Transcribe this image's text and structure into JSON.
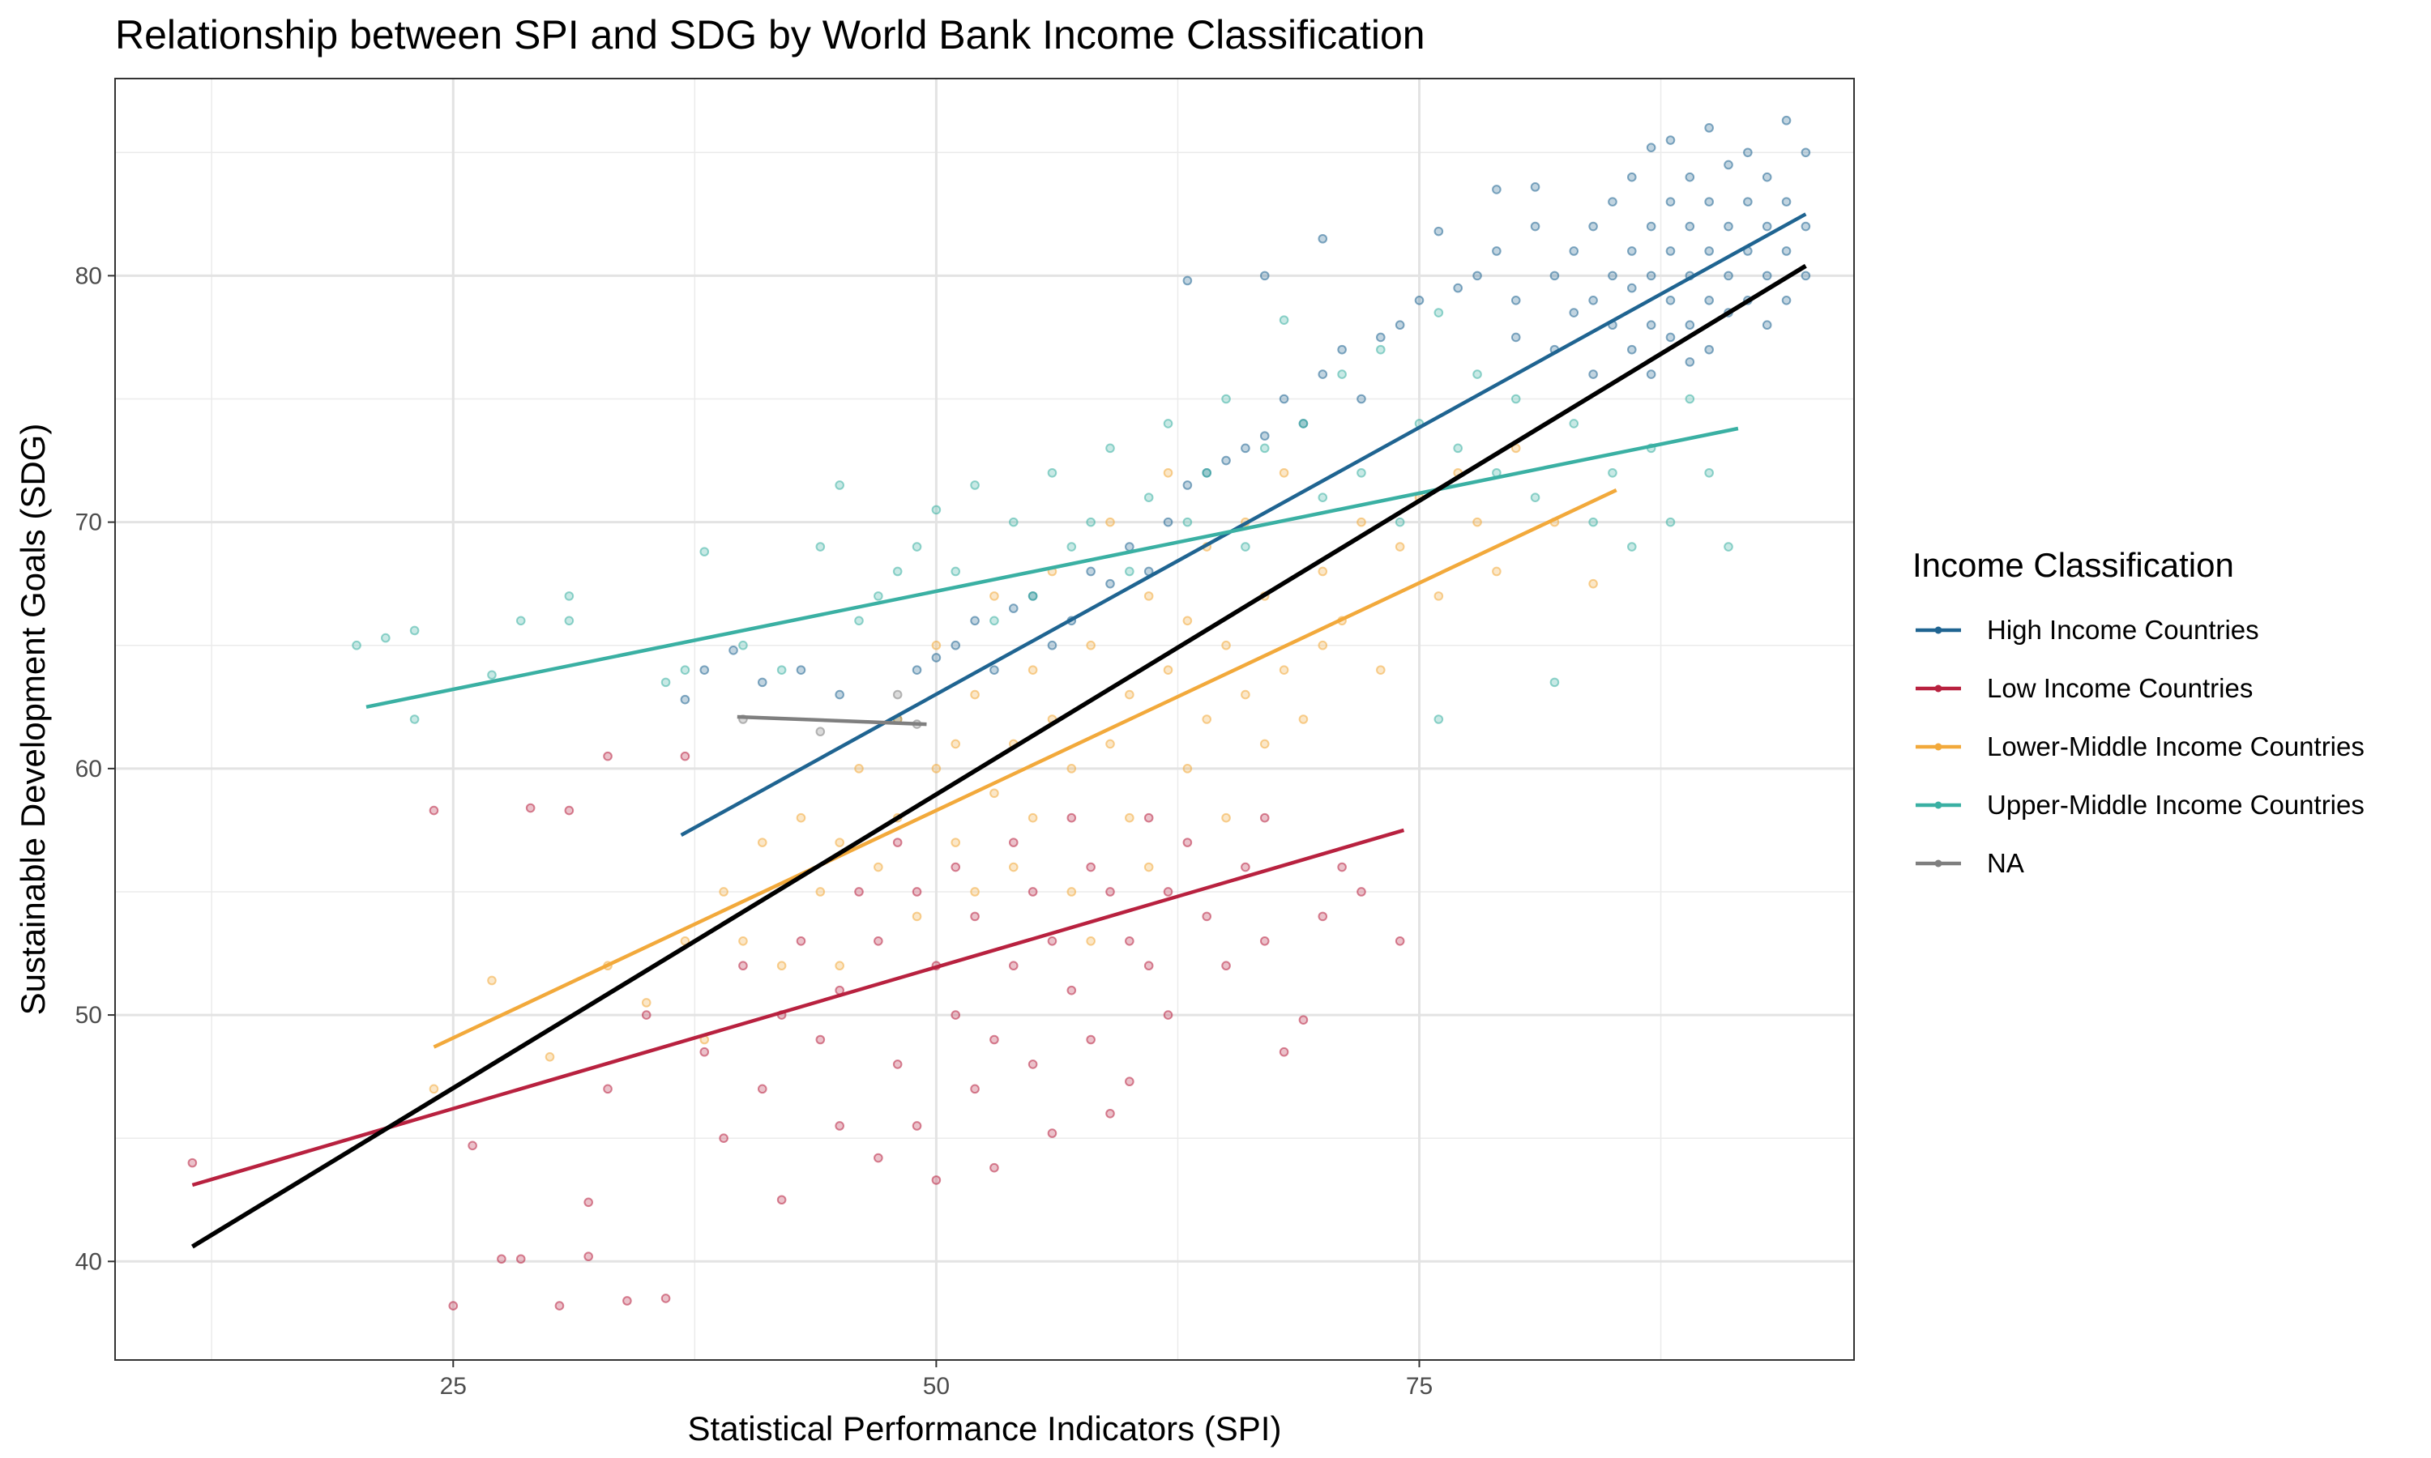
{
  "chart_data": {
    "type": "scatter",
    "title": "Relationship between SPI and SDG by World Bank Income Classification",
    "xlabel": "Statistical Performance Indicators (SPI)",
    "ylabel": "Sustainable Development Goals (SDG)",
    "xlim": [
      7.5,
      97.5
    ],
    "ylim": [
      36,
      88
    ],
    "xticks": [
      25,
      50,
      75
    ],
    "yticks": [
      40,
      50,
      60,
      70,
      80
    ],
    "grid": true,
    "legend": {
      "title": "Income Classification",
      "position": "right"
    },
    "series": [
      {
        "name": "High Income Countries",
        "color": "#1f6491",
        "points": [
          [
            37,
            62.8
          ],
          [
            38,
            64
          ],
          [
            39.5,
            64.8
          ],
          [
            41,
            63.5
          ],
          [
            43,
            64
          ],
          [
            45,
            63
          ],
          [
            48,
            62
          ],
          [
            49,
            64
          ],
          [
            50,
            64.5
          ],
          [
            51,
            65
          ],
          [
            52,
            66
          ],
          [
            53,
            64
          ],
          [
            54,
            66.5
          ],
          [
            55,
            67
          ],
          [
            56,
            65
          ],
          [
            57,
            66
          ],
          [
            58,
            68
          ],
          [
            59,
            67.5
          ],
          [
            60,
            69
          ],
          [
            61,
            68
          ],
          [
            62,
            70
          ],
          [
            63,
            71.5
          ],
          [
            63,
            79.8
          ],
          [
            64,
            72
          ],
          [
            65,
            72.5
          ],
          [
            66,
            73
          ],
          [
            67,
            73.5
          ],
          [
            67,
            80
          ],
          [
            68,
            75
          ],
          [
            69,
            74
          ],
          [
            70,
            76
          ],
          [
            70,
            81.5
          ],
          [
            71,
            77
          ],
          [
            72,
            75
          ],
          [
            73,
            77.5
          ],
          [
            74,
            78
          ],
          [
            75,
            79
          ],
          [
            76,
            81.8
          ],
          [
            77,
            79.5
          ],
          [
            78,
            80
          ],
          [
            79,
            81
          ],
          [
            79,
            83.5
          ],
          [
            80,
            79
          ],
          [
            80,
            77.5
          ],
          [
            81,
            82
          ],
          [
            81,
            83.6
          ],
          [
            82,
            80
          ],
          [
            82,
            77
          ],
          [
            83,
            81
          ],
          [
            83,
            78.5
          ],
          [
            84,
            82
          ],
          [
            84,
            79
          ],
          [
            84,
            76
          ],
          [
            85,
            80
          ],
          [
            85,
            83
          ],
          [
            85,
            78
          ],
          [
            86,
            81
          ],
          [
            86,
            84
          ],
          [
            86,
            77
          ],
          [
            86,
            79.5
          ],
          [
            87,
            82
          ],
          [
            87,
            80
          ],
          [
            87,
            85.2
          ],
          [
            87,
            78
          ],
          [
            87,
            76
          ],
          [
            88,
            81
          ],
          [
            88,
            83
          ],
          [
            88,
            79
          ],
          [
            88,
            85.5
          ],
          [
            88,
            77.5
          ],
          [
            89,
            80
          ],
          [
            89,
            82
          ],
          [
            89,
            84
          ],
          [
            89,
            78
          ],
          [
            89,
            76.5
          ],
          [
            90,
            81
          ],
          [
            90,
            79
          ],
          [
            90,
            83
          ],
          [
            90,
            86
          ],
          [
            90,
            77
          ],
          [
            91,
            80
          ],
          [
            91,
            82
          ],
          [
            91,
            84.5
          ],
          [
            91,
            78.5
          ],
          [
            92,
            81
          ],
          [
            92,
            79
          ],
          [
            92,
            83
          ],
          [
            92,
            85
          ],
          [
            93,
            80
          ],
          [
            93,
            82
          ],
          [
            93,
            78
          ],
          [
            93,
            84
          ],
          [
            94,
            81
          ],
          [
            94,
            86.3
          ],
          [
            94,
            79
          ],
          [
            94,
            83
          ],
          [
            95,
            80
          ],
          [
            95,
            82
          ],
          [
            95,
            85
          ]
        ]
      },
      {
        "name": "Low Income Countries",
        "color": "#b8213f",
        "points": [
          [
            11.5,
            44
          ],
          [
            24,
            58.3
          ],
          [
            25,
            38.2
          ],
          [
            26,
            44.7
          ],
          [
            27.5,
            40.1
          ],
          [
            28.5,
            40.1
          ],
          [
            29,
            58.4
          ],
          [
            30.5,
            38.2
          ],
          [
            31,
            58.3
          ],
          [
            32,
            42.4
          ],
          [
            32,
            40.2
          ],
          [
            33,
            47
          ],
          [
            33,
            60.5
          ],
          [
            34,
            38.4
          ],
          [
            35,
            50
          ],
          [
            36,
            38.5
          ],
          [
            37,
            60.5
          ],
          [
            38,
            48.5
          ],
          [
            39,
            45
          ],
          [
            40,
            52
          ],
          [
            41,
            47
          ],
          [
            42,
            50
          ],
          [
            42,
            42.5
          ],
          [
            43,
            53
          ],
          [
            44,
            49
          ],
          [
            45,
            51
          ],
          [
            45,
            45.5
          ],
          [
            46,
            55
          ],
          [
            47,
            53
          ],
          [
            47,
            44.2
          ],
          [
            48,
            57
          ],
          [
            48,
            48
          ],
          [
            49,
            55
          ],
          [
            49,
            45.5
          ],
          [
            50,
            52
          ],
          [
            50,
            43.3
          ],
          [
            51,
            56
          ],
          [
            51,
            50
          ],
          [
            52,
            54
          ],
          [
            52,
            47
          ],
          [
            53,
            49
          ],
          [
            53,
            43.8
          ],
          [
            54,
            57
          ],
          [
            54,
            52
          ],
          [
            55,
            55
          ],
          [
            55,
            48
          ],
          [
            56,
            53
          ],
          [
            56,
            45.2
          ],
          [
            57,
            58
          ],
          [
            57,
            51
          ],
          [
            58,
            56
          ],
          [
            58,
            49
          ],
          [
            59,
            55
          ],
          [
            59,
            46
          ],
          [
            60,
            53
          ],
          [
            60,
            47.3
          ],
          [
            61,
            58
          ],
          [
            61,
            52
          ],
          [
            62,
            55
          ],
          [
            62,
            50
          ],
          [
            63,
            57
          ],
          [
            64,
            54
          ],
          [
            65,
            52
          ],
          [
            66,
            56
          ],
          [
            67,
            58
          ],
          [
            67,
            53
          ],
          [
            68,
            48.5
          ],
          [
            69,
            49.8
          ],
          [
            70,
            54
          ],
          [
            71,
            56
          ],
          [
            72,
            55
          ],
          [
            74,
            53
          ]
        ]
      },
      {
        "name": "Lower-Middle Income Countries",
        "color": "#f2a93b",
        "points": [
          [
            24,
            47
          ],
          [
            27,
            51.4
          ],
          [
            30,
            48.3
          ],
          [
            33,
            52
          ],
          [
            35,
            50.5
          ],
          [
            37,
            53
          ],
          [
            38,
            49
          ],
          [
            39,
            55
          ],
          [
            40,
            53
          ],
          [
            41,
            57
          ],
          [
            42,
            52
          ],
          [
            43,
            58
          ],
          [
            44,
            55
          ],
          [
            45,
            57
          ],
          [
            45,
            52
          ],
          [
            46,
            60
          ],
          [
            47,
            56
          ],
          [
            48,
            62
          ],
          [
            48,
            58
          ],
          [
            49,
            54
          ],
          [
            50,
            60
          ],
          [
            50,
            65
          ],
          [
            51,
            57
          ],
          [
            51,
            61
          ],
          [
            52,
            63
          ],
          [
            52,
            55
          ],
          [
            53,
            59
          ],
          [
            53,
            67
          ],
          [
            54,
            61
          ],
          [
            54,
            56
          ],
          [
            55,
            64
          ],
          [
            55,
            58
          ],
          [
            56,
            62
          ],
          [
            56,
            68
          ],
          [
            57,
            60
          ],
          [
            57,
            55
          ],
          [
            58,
            65
          ],
          [
            58,
            53
          ],
          [
            59,
            61
          ],
          [
            59,
            70
          ],
          [
            60,
            58
          ],
          [
            60,
            63
          ],
          [
            61,
            67
          ],
          [
            61,
            56
          ],
          [
            62,
            64
          ],
          [
            62,
            72
          ],
          [
            63,
            60
          ],
          [
            63,
            66
          ],
          [
            64,
            62
          ],
          [
            64,
            69
          ],
          [
            65,
            65
          ],
          [
            65,
            58
          ],
          [
            66,
            63
          ],
          [
            66,
            70
          ],
          [
            67,
            67
          ],
          [
            67,
            61
          ],
          [
            68,
            64
          ],
          [
            68,
            72
          ],
          [
            69,
            62
          ],
          [
            70,
            68
          ],
          [
            70,
            65
          ],
          [
            71,
            66
          ],
          [
            72,
            70
          ],
          [
            73,
            64
          ],
          [
            74,
            69
          ],
          [
            75,
            71
          ],
          [
            76,
            67
          ],
          [
            77,
            72
          ],
          [
            78,
            70
          ],
          [
            79,
            68
          ],
          [
            80,
            73
          ],
          [
            82,
            70
          ],
          [
            84,
            67.5
          ]
        ]
      },
      {
        "name": "Upper-Middle Income Countries",
        "color": "#3ab0a3",
        "points": [
          [
            20,
            65
          ],
          [
            21.5,
            65.3
          ],
          [
            23,
            65.6
          ],
          [
            23,
            62
          ],
          [
            27,
            63.8
          ],
          [
            28.5,
            66
          ],
          [
            31,
            67
          ],
          [
            31,
            66
          ],
          [
            36,
            63.5
          ],
          [
            37,
            64
          ],
          [
            38,
            68.8
          ],
          [
            40,
            65
          ],
          [
            42,
            64
          ],
          [
            44,
            69
          ],
          [
            45,
            71.5
          ],
          [
            46,
            66
          ],
          [
            47,
            67
          ],
          [
            48,
            68
          ],
          [
            49,
            69
          ],
          [
            50,
            70.5
          ],
          [
            51,
            68
          ],
          [
            52,
            71.5
          ],
          [
            53,
            66
          ],
          [
            54,
            70
          ],
          [
            55,
            67
          ],
          [
            56,
            72
          ],
          [
            57,
            69
          ],
          [
            58,
            70
          ],
          [
            59,
            73
          ],
          [
            60,
            68
          ],
          [
            61,
            71
          ],
          [
            62,
            74
          ],
          [
            63,
            70
          ],
          [
            64,
            72
          ],
          [
            65,
            75
          ],
          [
            66,
            69
          ],
          [
            67,
            73
          ],
          [
            68,
            78.2
          ],
          [
            69,
            74
          ],
          [
            70,
            71
          ],
          [
            71,
            76
          ],
          [
            72,
            72
          ],
          [
            73,
            77
          ],
          [
            74,
            70
          ],
          [
            75,
            74
          ],
          [
            76,
            78.5
          ],
          [
            76,
            62
          ],
          [
            77,
            73
          ],
          [
            78,
            76
          ],
          [
            79,
            72
          ],
          [
            80,
            75
          ],
          [
            81,
            71
          ],
          [
            82,
            63.5
          ],
          [
            83,
            74
          ],
          [
            84,
            70
          ],
          [
            85,
            72
          ],
          [
            86,
            69
          ],
          [
            87,
            73
          ],
          [
            88,
            70
          ],
          [
            89,
            75
          ],
          [
            90,
            72
          ],
          [
            91,
            69
          ]
        ]
      },
      {
        "name": "NA",
        "color": "#7f7f7f",
        "points": [
          [
            40,
            62
          ],
          [
            44,
            61.5
          ],
          [
            48,
            63
          ],
          [
            49,
            61.8
          ]
        ]
      }
    ],
    "fit_lines": [
      {
        "name": "High Income Countries",
        "color": "#1f6491",
        "x": [
          36.8,
          95
        ],
        "y": [
          57.3,
          82.5
        ]
      },
      {
        "name": "Low Income Countries",
        "color": "#b8213f",
        "x": [
          11.5,
          74.2
        ],
        "y": [
          43.1,
          57.5
        ]
      },
      {
        "name": "Lower-Middle Income Countries",
        "color": "#f2a93b",
        "x": [
          24,
          85.2
        ],
        "y": [
          48.7,
          71.3
        ]
      },
      {
        "name": "Upper-Middle Income Countries",
        "color": "#3ab0a3",
        "x": [
          20.5,
          91.5
        ],
        "y": [
          62.5,
          73.8
        ]
      },
      {
        "name": "NA",
        "color": "#7f7f7f",
        "x": [
          39.7,
          49.5
        ],
        "y": [
          62.1,
          61.8
        ]
      },
      {
        "name": "",
        "color": "#000000",
        "x": [
          11.5,
          95
        ],
        "y": [
          40.6,
          80.4
        ]
      }
    ]
  }
}
